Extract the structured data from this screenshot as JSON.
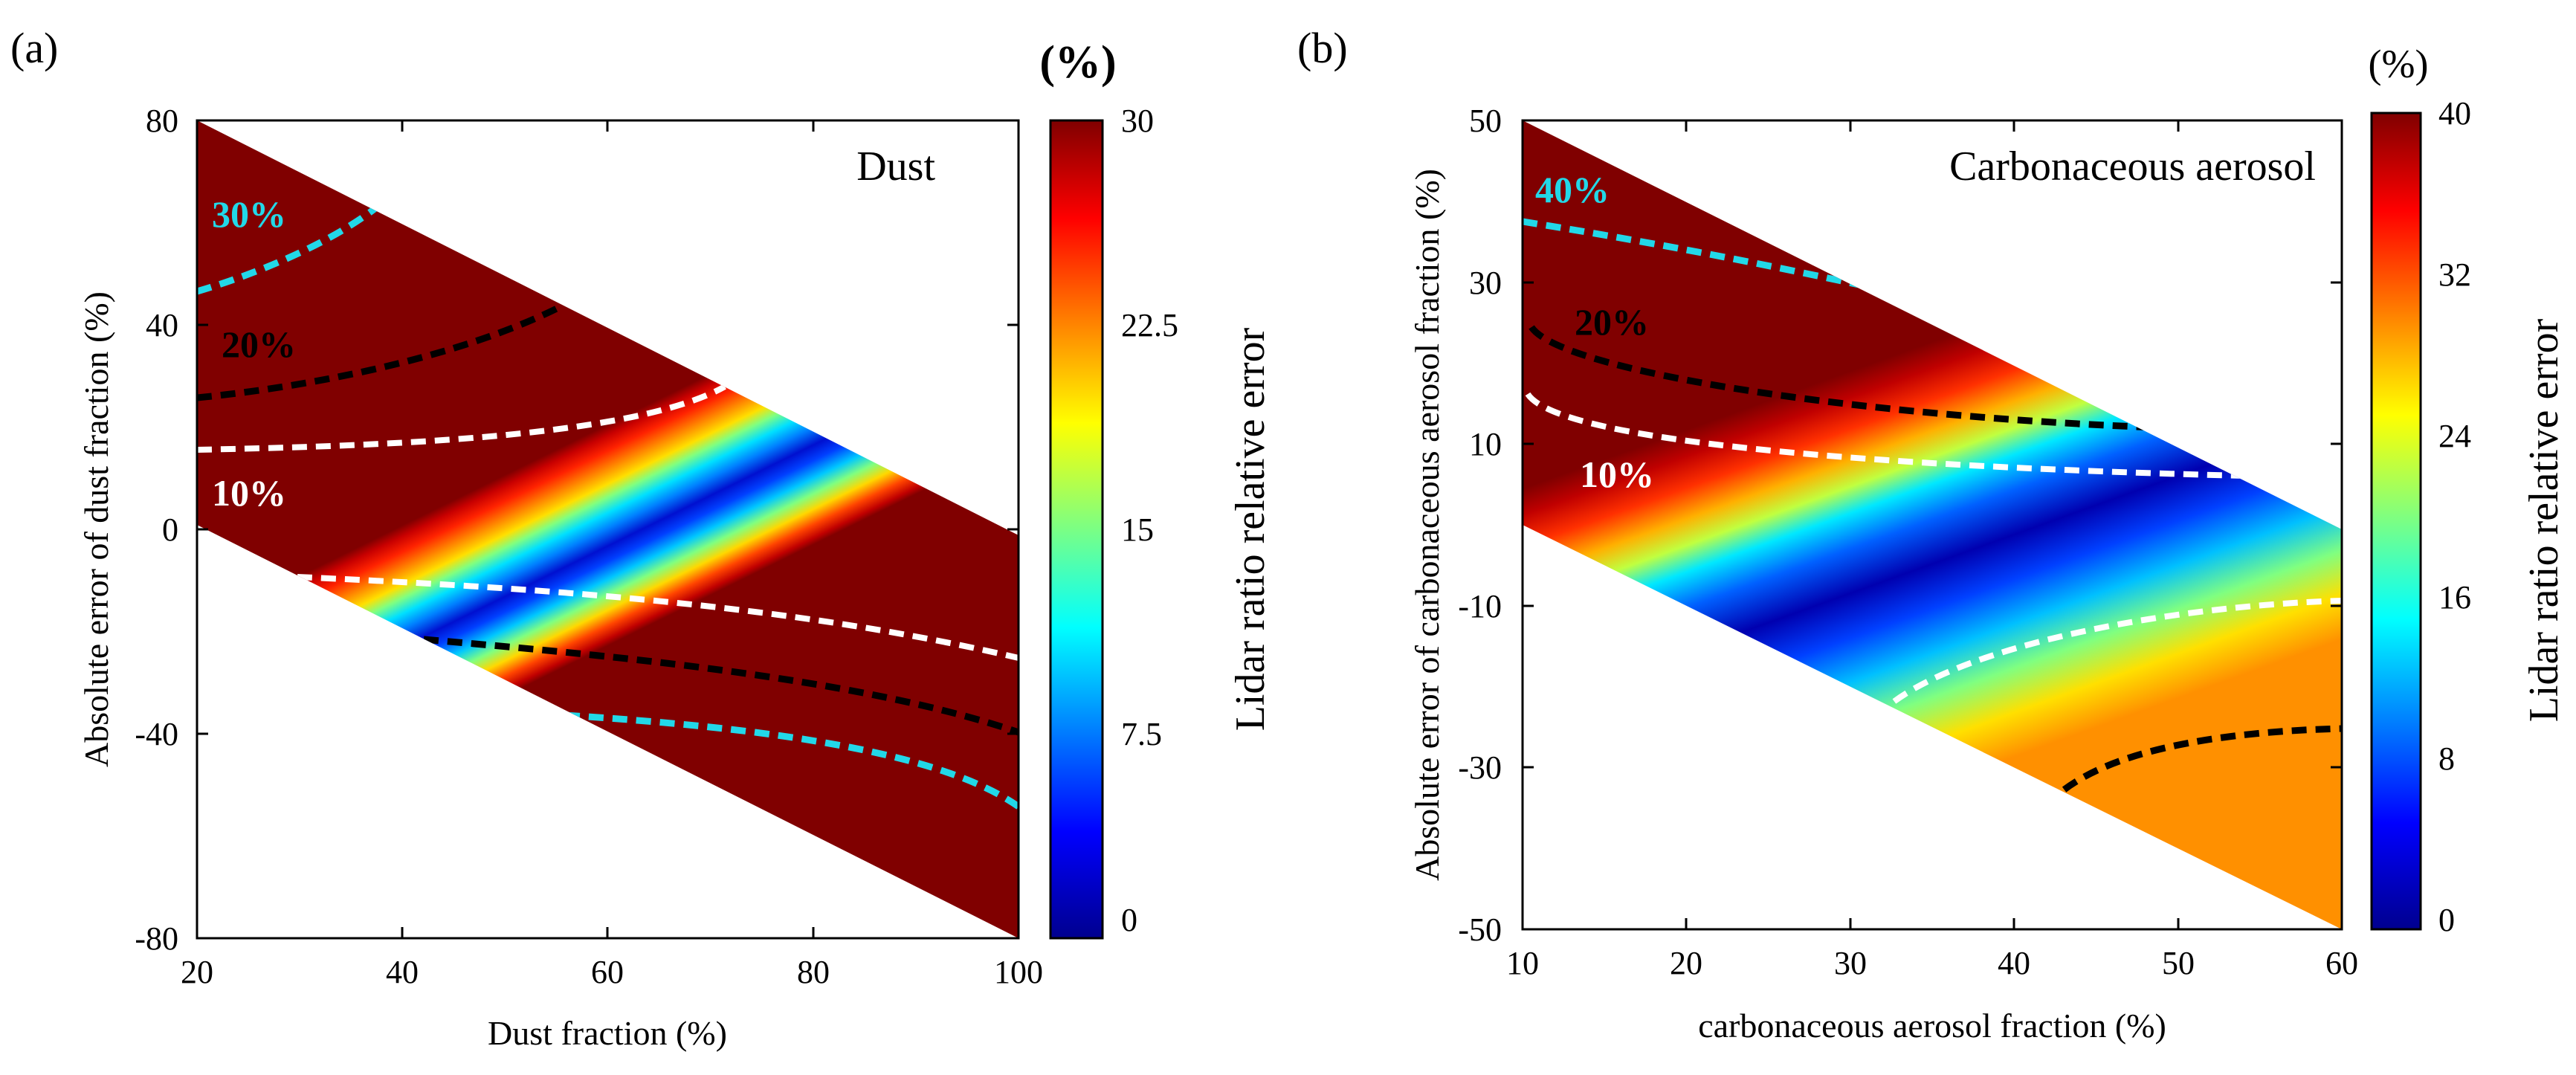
{
  "chart_data": [
    {
      "type": "heatmap",
      "panel_label": "(a)",
      "title": "Dust",
      "xlabel": "Dust fraction (%)",
      "ylabel": "Absolute error of dust fraction (%)",
      "xlim": [
        20,
        100
      ],
      "ylim": [
        -80,
        80
      ],
      "xticks": [
        "20",
        "40",
        "60",
        "80",
        "100"
      ],
      "yticks": [
        "80",
        "40",
        "0",
        "-40",
        "-80"
      ],
      "valid_region": "y between -x+20 and x? ; band bounded above by y = 100 - x and below by y = -x + 20",
      "colorbar": {
        "label": "Lidar ratio relative error",
        "unit": "(%)",
        "range": [
          0,
          30
        ],
        "ticks": [
          "30",
          "22.5",
          "15",
          "7.5",
          "0"
        ]
      },
      "contours": [
        {
          "label": "30%",
          "level": 30,
          "color": "cyan"
        },
        {
          "label": "20%",
          "level": 20,
          "color": "black"
        },
        {
          "label": "10%",
          "level": 10,
          "color": "white"
        }
      ]
    },
    {
      "type": "heatmap",
      "panel_label": "(b)",
      "title": "Carbonaceous aerosol",
      "xlabel": "carbonaceous aerosol fraction (%)",
      "ylabel": "Absolute error of carbonaceous aerosol fraction (%)",
      "xlim": [
        10,
        60
      ],
      "ylim": [
        -50,
        50
      ],
      "xticks": [
        "10",
        "20",
        "30",
        "40",
        "50",
        "60"
      ],
      "yticks": [
        "50",
        "30",
        "10",
        "-10",
        "-30",
        "-50"
      ],
      "colorbar": {
        "label": "Lidar ratio relative error",
        "unit": "(%)",
        "range": [
          0,
          40
        ],
        "ticks": [
          "40",
          "32",
          "24",
          "16",
          "8",
          "0"
        ]
      },
      "contours": [
        {
          "label": "40%",
          "level": 40,
          "color": "cyan"
        },
        {
          "label": "20%",
          "level": 20,
          "color": "black"
        },
        {
          "label": "10%",
          "level": 10,
          "color": "white"
        }
      ]
    }
  ]
}
